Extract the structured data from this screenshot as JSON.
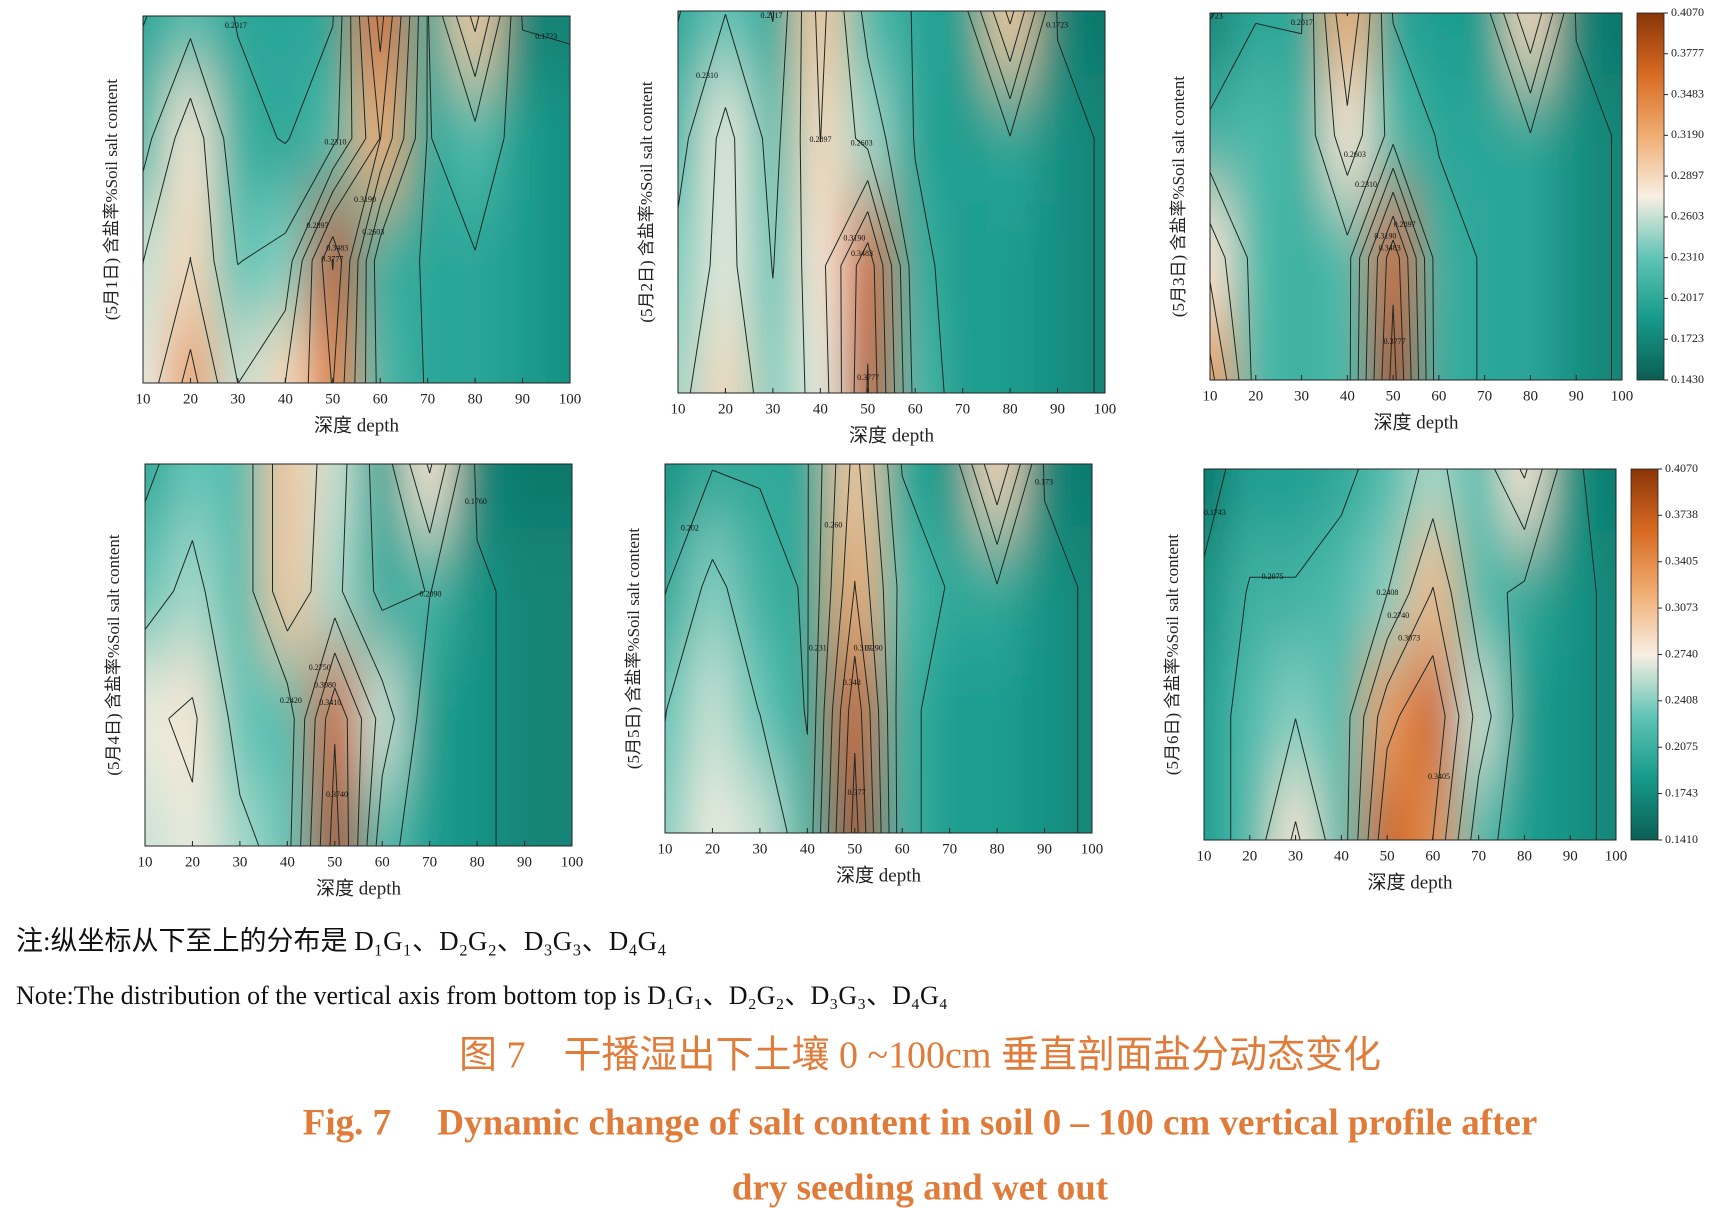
{
  "chart_data": [
    {
      "type": "contour",
      "y_label": "(5月1日) 含盐率%Soil salt content",
      "x_label": "深度 depth",
      "x": [
        10,
        20,
        30,
        40,
        50,
        60,
        70,
        80,
        90,
        100
      ],
      "xlim": [
        10,
        100
      ],
      "xticks": [
        10,
        20,
        30,
        40,
        50,
        60,
        70,
        80,
        90,
        100
      ],
      "z": [
        [
          0.27,
          0.33,
          0.26,
          0.29,
          0.35,
          0.22,
          0.2,
          0.2,
          0.19,
          0.18
        ],
        [
          0.26,
          0.29,
          0.23,
          0.24,
          0.38,
          0.21,
          0.2,
          0.2,
          0.19,
          0.18
        ],
        [
          0.22,
          0.28,
          0.21,
          0.2,
          0.22,
          0.32,
          0.2,
          0.22,
          0.19,
          0.18
        ],
        [
          0.2,
          0.22,
          0.2,
          0.2,
          0.2,
          0.36,
          0.2,
          0.3,
          0.17,
          0.17
        ]
      ],
      "levels": [
        {
          "value": 0.1723,
          "label": "0.1723"
        },
        {
          "value": 0.2017,
          "label": "0.2017"
        },
        {
          "value": 0.231,
          "label": "0.2310"
        },
        {
          "value": 0.2603,
          "label": "0.2603"
        },
        {
          "value": 0.2897,
          "label": "0.2897"
        },
        {
          "value": 0.319,
          "label": "0.3190"
        },
        {
          "value": 0.3483,
          "label": "0.3483"
        },
        {
          "value": 0.3777,
          "label": "0.3777"
        }
      ]
    },
    {
      "type": "contour",
      "y_label": "(5月2日) 含盐率%Soil salt content",
      "x_label": "深度 depth",
      "x": [
        10,
        20,
        30,
        40,
        50,
        60,
        70,
        80,
        90,
        100
      ],
      "xlim": [
        10,
        100
      ],
      "xticks": [
        10,
        20,
        30,
        40,
        50,
        60,
        70,
        80,
        90,
        100
      ],
      "z": [
        [
          0.25,
          0.29,
          0.24,
          0.27,
          0.38,
          0.22,
          0.19,
          0.19,
          0.18,
          0.17
        ],
        [
          0.24,
          0.27,
          0.23,
          0.28,
          0.37,
          0.21,
          0.19,
          0.19,
          0.18,
          0.17
        ],
        [
          0.22,
          0.27,
          0.22,
          0.29,
          0.25,
          0.2,
          0.19,
          0.2,
          0.18,
          0.17
        ],
        [
          0.2,
          0.23,
          0.2,
          0.3,
          0.22,
          0.2,
          0.19,
          0.3,
          0.17,
          0.16
        ]
      ],
      "levels": [
        {
          "value": 0.1723,
          "label": "0.1723"
        },
        {
          "value": 0.2017,
          "label": "0.2017"
        },
        {
          "value": 0.231,
          "label": "0.2310"
        },
        {
          "value": 0.2603,
          "label": "0.2603"
        },
        {
          "value": 0.2897,
          "label": "0.2897"
        },
        {
          "value": 0.319,
          "label": "0.3190"
        },
        {
          "value": 0.3483,
          "label": "0.3483"
        },
        {
          "value": 0.3777,
          "label": "0.3777"
        }
      ]
    },
    {
      "type": "contour",
      "y_label": "(5月3日) 含盐率%Soil salt content",
      "x_label": "深度 depth",
      "x": [
        10,
        20,
        30,
        40,
        50,
        60,
        70,
        80,
        90,
        100
      ],
      "xlim": [
        10,
        100
      ],
      "xticks": [
        10,
        20,
        30,
        40,
        50,
        60,
        70,
        80,
        90,
        100
      ],
      "z": [
        [
          0.33,
          0.22,
          0.21,
          0.22,
          0.39,
          0.21,
          0.2,
          0.2,
          0.18,
          0.17
        ],
        [
          0.28,
          0.22,
          0.21,
          0.22,
          0.37,
          0.21,
          0.2,
          0.2,
          0.18,
          0.17
        ],
        [
          0.21,
          0.22,
          0.21,
          0.28,
          0.22,
          0.2,
          0.2,
          0.2,
          0.18,
          0.17
        ],
        [
          0.17,
          0.2,
          0.2,
          0.32,
          0.2,
          0.19,
          0.19,
          0.29,
          0.17,
          0.16
        ]
      ],
      "levels": [
        {
          "value": 0.1723,
          "label": "0.1723"
        },
        {
          "value": 0.2017,
          "label": "0.2017"
        },
        {
          "value": 0.231,
          "label": "0.2310"
        },
        {
          "value": 0.2603,
          "label": "0.2603"
        },
        {
          "value": 0.2897,
          "label": "0.2897"
        },
        {
          "value": 0.319,
          "label": "0.3190"
        },
        {
          "value": 0.3483,
          "label": "0.3483"
        },
        {
          "value": 0.3777,
          "label": "0.3777"
        }
      ],
      "colorbar": {
        "zlim": [
          0.143,
          0.407
        ],
        "colormap": [
          "#0b5e54",
          "#169a8b",
          "#5fc4b6",
          "#f8efe2",
          "#f0ad72",
          "#d86a22",
          "#8a3507"
        ],
        "ticks": [
          {
            "value": 0.407,
            "label": "0.4070"
          },
          {
            "value": 0.3777,
            "label": "0.3777"
          },
          {
            "value": 0.3483,
            "label": "0.3483"
          },
          {
            "value": 0.319,
            "label": "0.3190"
          },
          {
            "value": 0.2897,
            "label": "0.2897"
          },
          {
            "value": 0.2603,
            "label": "0.2603"
          },
          {
            "value": 0.231,
            "label": "0.2310"
          },
          {
            "value": 0.2017,
            "label": "0.2017"
          },
          {
            "value": 0.1723,
            "label": "0.1723"
          },
          {
            "value": 0.143,
            "label": "0.1430"
          }
        ]
      }
    },
    {
      "type": "contour",
      "y_label": "(5月4日) 含盐率%Soil salt content",
      "x_label": "深度 depth",
      "x": [
        10,
        20,
        30,
        40,
        50,
        60,
        70,
        80,
        90,
        100
      ],
      "xlim": [
        10,
        100
      ],
      "xticks": [
        10,
        20,
        30,
        40,
        50,
        60,
        70,
        80,
        90,
        100
      ],
      "z": [
        [
          0.26,
          0.27,
          0.25,
          0.23,
          0.39,
          0.22,
          0.19,
          0.18,
          0.17,
          0.17
        ],
        [
          0.27,
          0.28,
          0.23,
          0.22,
          0.37,
          0.26,
          0.19,
          0.18,
          0.17,
          0.17
        ],
        [
          0.23,
          0.25,
          0.22,
          0.3,
          0.25,
          0.2,
          0.21,
          0.18,
          0.17,
          0.17
        ],
        [
          0.2,
          0.23,
          0.22,
          0.3,
          0.26,
          0.19,
          0.28,
          0.17,
          0.16,
          0.16
        ]
      ],
      "levels": [
        {
          "value": 0.176,
          "label": "0.1760"
        },
        {
          "value": 0.209,
          "label": "0.2090"
        },
        {
          "value": 0.242,
          "label": "0.2420"
        },
        {
          "value": 0.275,
          "label": "0.2750"
        },
        {
          "value": 0.308,
          "label": "0.3080"
        },
        {
          "value": 0.341,
          "label": "0.3410"
        },
        {
          "value": 0.374,
          "label": "0.3740"
        }
      ]
    },
    {
      "type": "contour",
      "y_label": "(5月5日) 含盐率%Soil salt content",
      "x_label": "深度 depth",
      "x": [
        10,
        20,
        30,
        40,
        50,
        60,
        70,
        80,
        90,
        100
      ],
      "xlim": [
        10,
        100
      ],
      "xticks": [
        10,
        20,
        30,
        40,
        50,
        60,
        70,
        80,
        90,
        100
      ],
      "z": [
        [
          0.24,
          0.27,
          0.26,
          0.21,
          0.39,
          0.21,
          0.19,
          0.19,
          0.18,
          0.17
        ],
        [
          0.23,
          0.26,
          0.23,
          0.2,
          0.37,
          0.21,
          0.19,
          0.19,
          0.18,
          0.17
        ],
        [
          0.2,
          0.24,
          0.21,
          0.2,
          0.32,
          0.22,
          0.2,
          0.2,
          0.18,
          0.17
        ],
        [
          0.18,
          0.2,
          0.2,
          0.2,
          0.3,
          0.2,
          0.18,
          0.29,
          0.17,
          0.16
        ]
      ],
      "levels": [
        {
          "value": 0.173,
          "label": "0.173"
        },
        {
          "value": 0.202,
          "label": "0.202"
        },
        {
          "value": 0.231,
          "label": "0.231"
        },
        {
          "value": 0.26,
          "label": "0.260"
        },
        {
          "value": 0.29,
          "label": "0.290"
        },
        {
          "value": 0.319,
          "label": "0.319"
        },
        {
          "value": 0.348,
          "label": "0.348"
        },
        {
          "value": 0.377,
          "label": "0.377"
        }
      ]
    },
    {
      "type": "contour",
      "y_label": "(5月6日) 含盐率%Soil salt content",
      "x_label": "深度 depth",
      "x": [
        10,
        20,
        30,
        40,
        50,
        60,
        70,
        80,
        90,
        100
      ],
      "xlim": [
        10,
        100
      ],
      "xticks": [
        10,
        20,
        30,
        40,
        50,
        60,
        70,
        80,
        90,
        100
      ],
      "z": [
        [
          0.19,
          0.22,
          0.28,
          0.22,
          0.37,
          0.34,
          0.22,
          0.19,
          0.18,
          0.17
        ],
        [
          0.19,
          0.22,
          0.24,
          0.22,
          0.33,
          0.37,
          0.26,
          0.19,
          0.18,
          0.17
        ],
        [
          0.18,
          0.21,
          0.21,
          0.22,
          0.24,
          0.31,
          0.22,
          0.2,
          0.18,
          0.17
        ],
        [
          0.16,
          0.19,
          0.19,
          0.2,
          0.22,
          0.25,
          0.22,
          0.28,
          0.18,
          0.16
        ]
      ],
      "levels": [
        {
          "value": 0.1743,
          "label": "0.1743"
        },
        {
          "value": 0.2075,
          "label": "0.2075"
        },
        {
          "value": 0.2408,
          "label": "0.2408"
        },
        {
          "value": 0.274,
          "label": "0.2740"
        },
        {
          "value": 0.3073,
          "label": "0.3073"
        },
        {
          "value": 0.3405,
          "label": "0.3405"
        },
        {
          "value": 0.3738,
          "label": "0.3738"
        }
      ],
      "colorbar": {
        "zlim": [
          0.141,
          0.407
        ],
        "colormap": [
          "#0b5e54",
          "#169a8b",
          "#5fc4b6",
          "#f8efe2",
          "#f0ad72",
          "#d86a22",
          "#8a3507"
        ],
        "ticks": [
          {
            "value": 0.407,
            "label": "0.4070"
          },
          {
            "value": 0.3738,
            "label": "0.3738"
          },
          {
            "value": 0.3405,
            "label": "0.3405"
          },
          {
            "value": 0.3073,
            "label": "0.3073"
          },
          {
            "value": 0.274,
            "label": "0.2740"
          },
          {
            "value": 0.2408,
            "label": "0.2408"
          },
          {
            "value": 0.2075,
            "label": "0.2075"
          },
          {
            "value": 0.1743,
            "label": "0.1743"
          },
          {
            "value": 0.141,
            "label": "0.1410"
          }
        ]
      }
    }
  ],
  "note": {
    "zh": "注:纵坐标从下至上的分布是 D₁G₁、D₂G₂、D₃G₃、D₄G₄",
    "en": "Note:The distribution of the vertical axis from bottom top is D₁G₁、D₂G₂、D₃G₃、D₄G₄"
  },
  "caption": {
    "zh": "图 7　干播湿出下土壤 0 ~100cm 垂直剖面盐分动态变化",
    "en": [
      "Fig. 7　 Dynamic change of salt content in soil 0 – 100 cm vertical profile after",
      "dry seeding and wet out"
    ]
  }
}
